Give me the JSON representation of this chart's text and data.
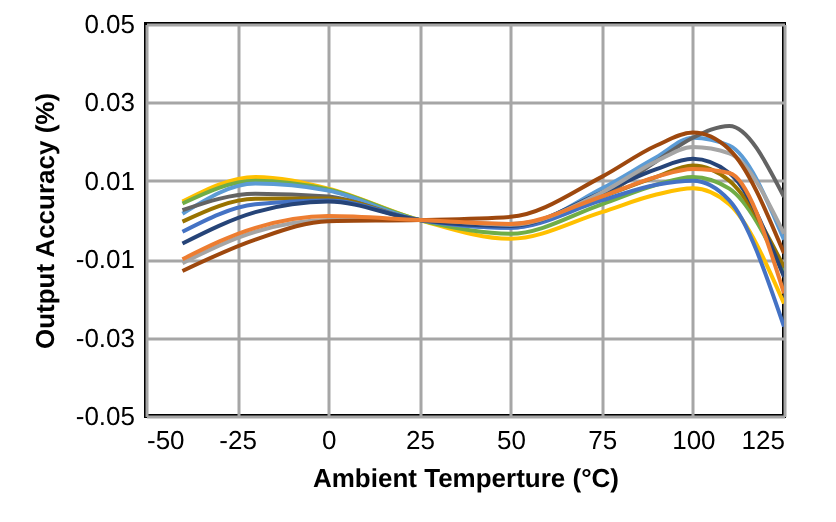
{
  "chart_data": {
    "type": "line",
    "xlabel": "Ambient Temperture (°C)",
    "ylabel": "Output Accuracy (%)",
    "x": [
      -40,
      -20,
      0,
      25,
      50,
      75,
      90,
      100,
      110,
      125
    ],
    "series": [
      {
        "color": "#ffc000",
        "values": [
          0.0047,
          0.011,
          0.008,
          0,
          -0.0048,
          0.002,
          0.0065,
          0.0081,
          0.004,
          -0.0213
        ]
      },
      {
        "color": "#70ad47",
        "values": [
          0.0042,
          0.01,
          0.0078,
          0,
          -0.0035,
          0.004,
          0.009,
          0.011,
          0.008,
          -0.0136
        ]
      },
      {
        "color": "#5b9bd5",
        "values": [
          0.0016,
          0.0093,
          0.0075,
          0,
          -0.002,
          0.008,
          0.016,
          0.021,
          0.019,
          -0.005
        ]
      },
      {
        "color": "#636363",
        "values": [
          0.0025,
          0.0067,
          0.006,
          0,
          -0.001,
          0.006,
          0.015,
          0.021,
          0.024,
          0.0059
        ]
      },
      {
        "color": "#997300",
        "values": [
          -0.0004,
          0.0054,
          0.0055,
          0,
          -0.0015,
          0.006,
          0.011,
          0.0139,
          0.01,
          -0.012
        ]
      },
      {
        "color": "#4472c4",
        "values": [
          -0.003,
          0.004,
          0.005,
          0,
          -0.002,
          0.005,
          0.009,
          0.01,
          0.005,
          -0.0272
        ]
      },
      {
        "color": "#264478",
        "values": [
          -0.006,
          0.002,
          0.0047,
          0,
          -0.0015,
          0.007,
          0.013,
          0.0156,
          0.012,
          -0.0145
        ]
      },
      {
        "color": "#a5a5a5",
        "values": [
          -0.011,
          -0.003,
          0,
          0,
          -0.0012,
          0.007,
          0.015,
          0.0186,
          0.017,
          -0.0035
        ]
      },
      {
        "color": "#9e480e",
        "values": [
          -0.013,
          -0.005,
          -0.0003,
          0,
          0.0008,
          0.011,
          0.019,
          0.0223,
          0.018,
          -0.0085
        ]
      },
      {
        "color": "#ed7d31",
        "values": [
          -0.01,
          -0.002,
          0.001,
          0,
          -0.001,
          0.006,
          0.011,
          0.013,
          0.012,
          -0.0187
        ]
      }
    ],
    "xlim": [
      -50,
      125
    ],
    "xticks": [
      -50,
      -25,
      0,
      25,
      50,
      75,
      100,
      125
    ],
    "ylim": [
      -0.05,
      0.05
    ],
    "yticks": [
      -0.05,
      -0.03,
      -0.01,
      0.01,
      0.03,
      0.05
    ],
    "grid": true,
    "line_style": "solid"
  }
}
